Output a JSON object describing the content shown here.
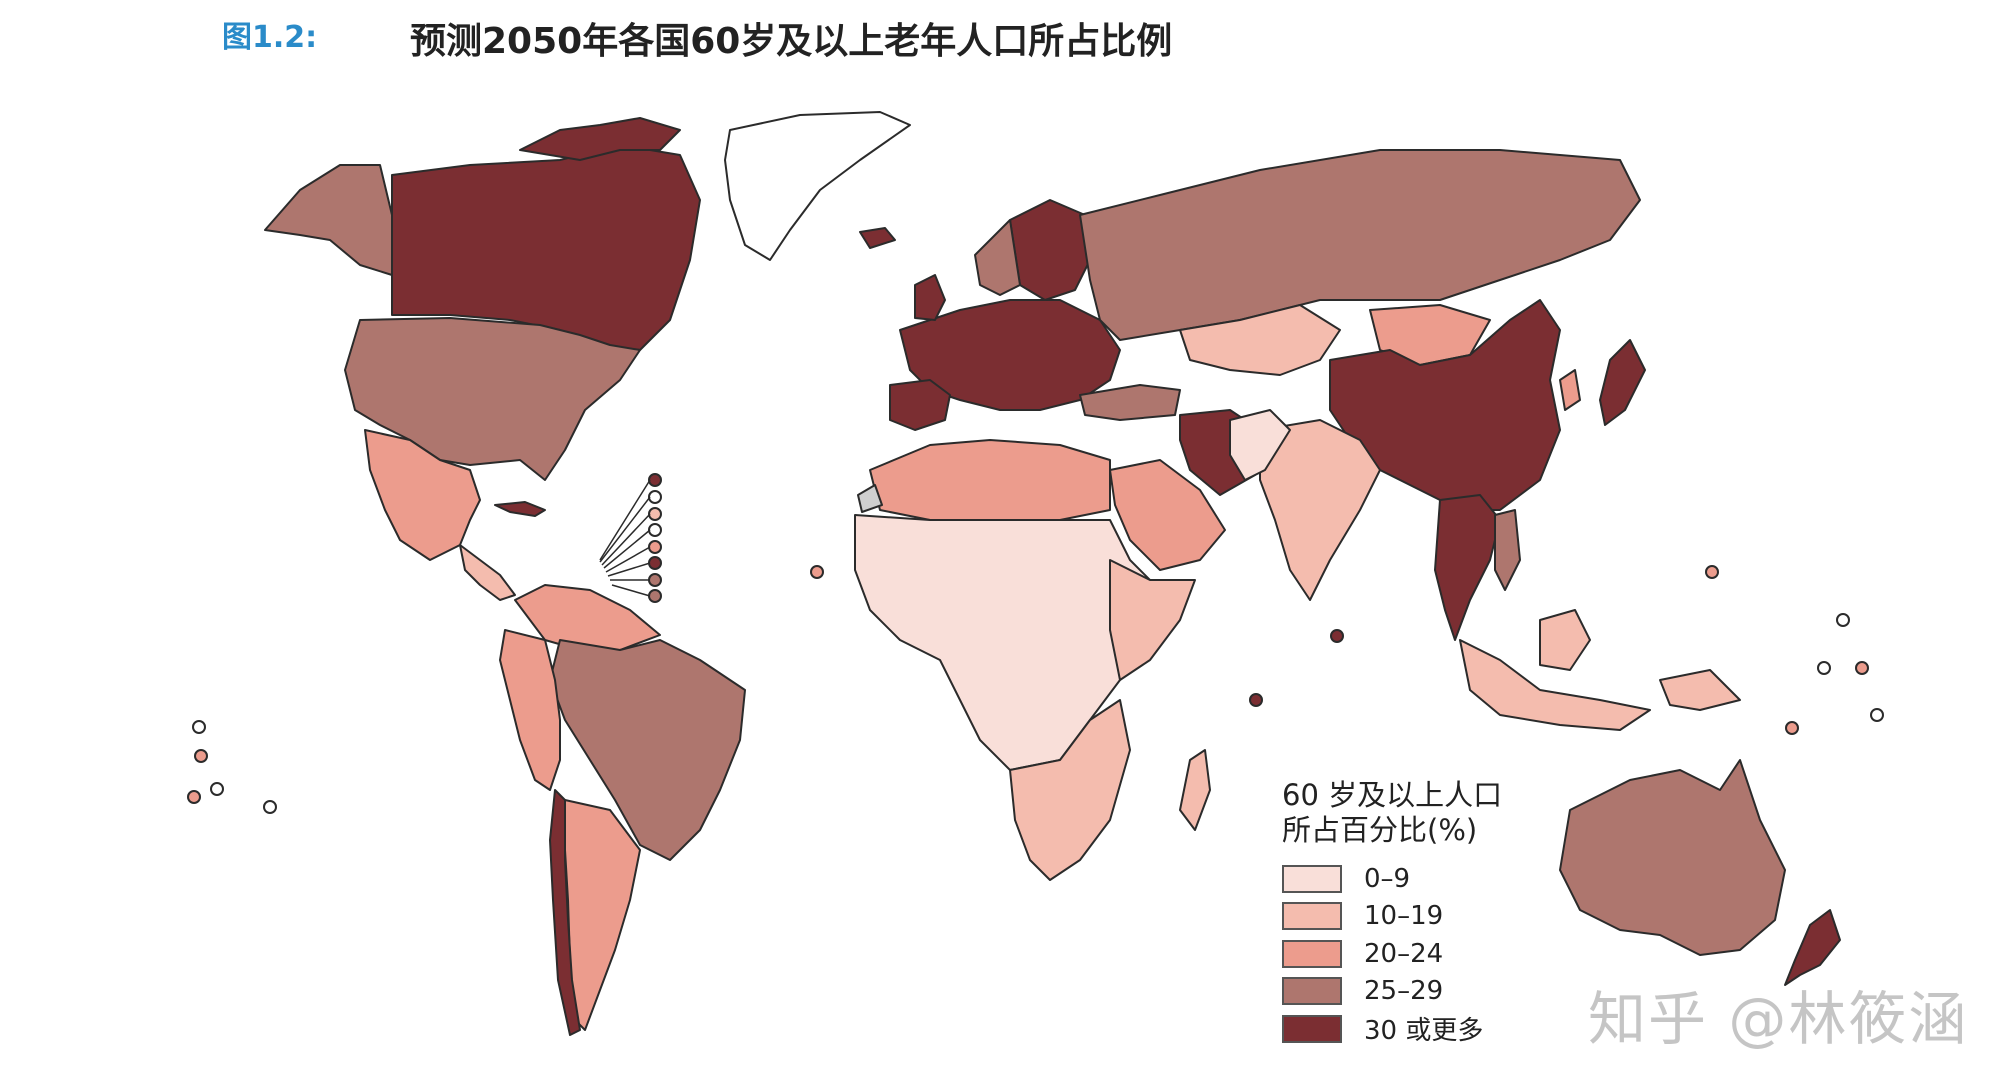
{
  "header": {
    "figure_label": "图1.2:",
    "title": "预测2050年各国60岁及以上老年人口所占比例"
  },
  "legend": {
    "title_line1": "60 岁及以上人口",
    "title_line2": "所占百分比(%)",
    "items": [
      {
        "label": "0–9",
        "color": "#f9dfd9"
      },
      {
        "label": "10–19",
        "color": "#f4bcae"
      },
      {
        "label": "20–24",
        "color": "#ec9c8d"
      },
      {
        "label": "25–29",
        "color": "#ae766e"
      },
      {
        "label": "30 或更多",
        "color": "#7b2e32"
      }
    ]
  },
  "colors": {
    "unclassified": "#ffffff",
    "no_data": "#cfcfcf",
    "border": "#2b2b2b"
  },
  "watermark": "知乎 @林筱涵"
}
